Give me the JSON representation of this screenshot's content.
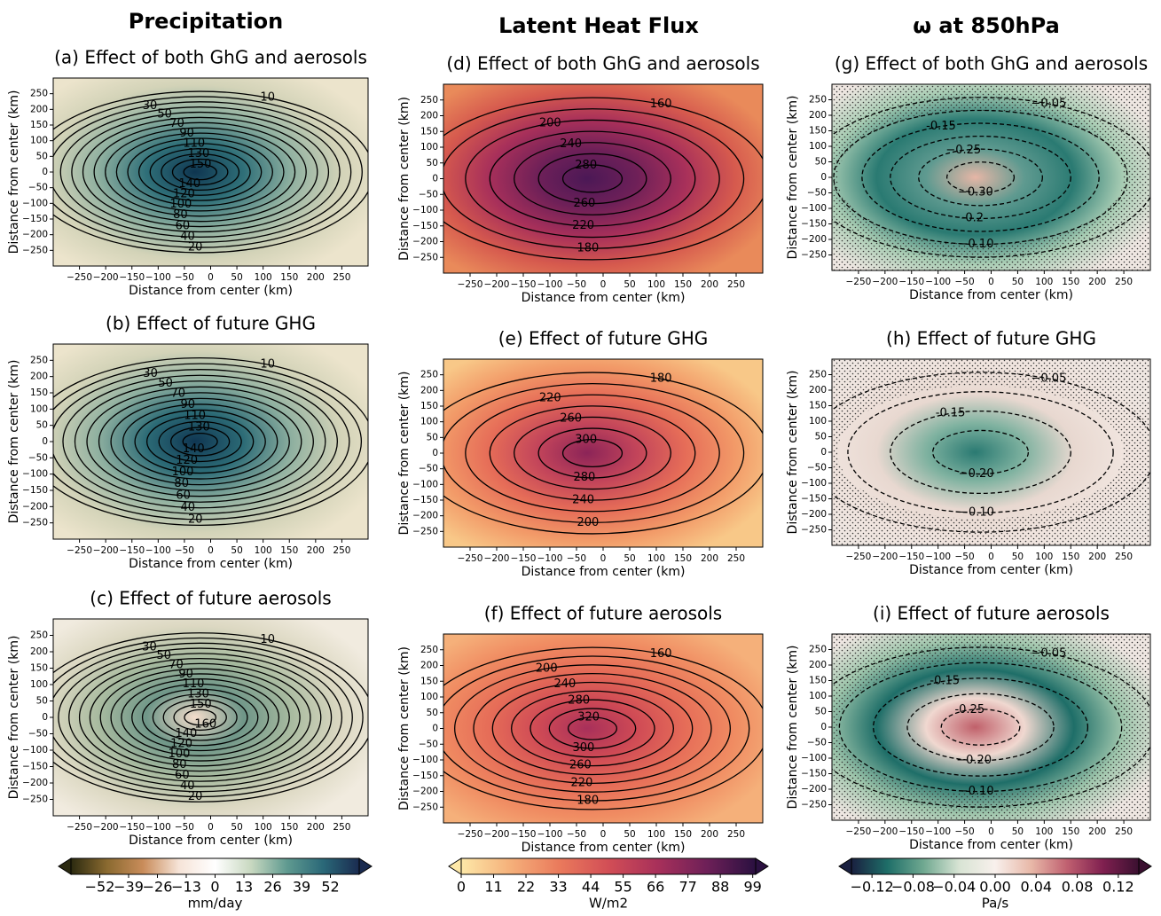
{
  "column_titles": [
    "Precipitation",
    "Latent Heat Flux",
    "ω at 850hPa"
  ],
  "chart_data": [
    {
      "type": "contour",
      "title": "(a) Effect of both GhG and aerosols",
      "xlabel": "Distance from center (km)",
      "ylabel": "Distance from center (km)",
      "xlim": [
        -300,
        300
      ],
      "ylim": [
        -300,
        300
      ],
      "xticks": [
        {
          "value": -250,
          "label": "−250"
        },
        {
          "value": -200,
          "label": "−200"
        },
        {
          "value": -150,
          "label": "−150"
        },
        {
          "value": -100,
          "label": "−100"
        },
        {
          "value": -50,
          "label": "−50"
        },
        0,
        50,
        100,
        150,
        200,
        250
      ],
      "yticks": [
        {
          "value": -250,
          "label": "−250"
        },
        {
          "value": -200,
          "label": "−200"
        },
        {
          "value": -150,
          "label": "−150"
        },
        {
          "value": -100,
          "label": "−100"
        },
        {
          "value": -50,
          "label": "−50"
        },
        0,
        50,
        100,
        150,
        200,
        250
      ],
      "levels": [
        10,
        20,
        30,
        40,
        50,
        60,
        70,
        80,
        90,
        100,
        110,
        120,
        130,
        140,
        150
      ],
      "colors": [
        "#0e3550",
        "#2f6f78",
        "#8fb0a0",
        "#d3d3b8",
        "#ece4cc"
      ]
    },
    {
      "type": "contour",
      "title": "(b) Effect of future GHG",
      "xlabel": "Distance from center (km)",
      "ylabel": "Distance from center (km)",
      "xlim": [
        -300,
        300
      ],
      "ylim": [
        -300,
        300
      ],
      "xticks": [
        {
          "value": -250,
          "label": "−250"
        },
        {
          "value": -200,
          "label": "−200"
        },
        {
          "value": -150,
          "label": "−150"
        },
        {
          "value": -100,
          "label": "−100"
        },
        {
          "value": -50,
          "label": "−50"
        },
        0,
        50,
        100,
        150,
        200,
        250
      ],
      "yticks": [
        {
          "value": -250,
          "label": "−250"
        },
        {
          "value": -200,
          "label": "−200"
        },
        {
          "value": -150,
          "label": "−150"
        },
        {
          "value": -100,
          "label": "−100"
        },
        {
          "value": -50,
          "label": "−50"
        },
        0,
        50,
        100,
        150,
        200,
        250
      ],
      "levels": [
        10,
        20,
        30,
        40,
        50,
        60,
        70,
        80,
        90,
        100,
        110,
        120,
        130,
        140
      ],
      "colors": [
        "#0f3652",
        "#2c6b76",
        "#8fb0a0",
        "#d3d3b8",
        "#ece4cc"
      ]
    },
    {
      "type": "contour",
      "title": "(c) Effect of future aerosols",
      "xlabel": "Distance from center (km)",
      "ylabel": "Distance from center (km)",
      "xlim": [
        -300,
        300
      ],
      "ylim": [
        -300,
        300
      ],
      "xticks": [
        {
          "value": -250,
          "label": "−250"
        },
        {
          "value": -200,
          "label": "−200"
        },
        {
          "value": -150,
          "label": "−150"
        },
        {
          "value": -100,
          "label": "−100"
        },
        {
          "value": -50,
          "label": "−50"
        },
        0,
        50,
        100,
        150,
        200,
        250
      ],
      "yticks": [
        {
          "value": -250,
          "label": "−250"
        },
        {
          "value": -200,
          "label": "−200"
        },
        {
          "value": -150,
          "label": "−150"
        },
        {
          "value": -100,
          "label": "−100"
        },
        {
          "value": -50,
          "label": "−50"
        },
        0,
        50,
        100,
        150,
        200,
        250
      ],
      "levels": [
        10,
        20,
        30,
        40,
        50,
        60,
        70,
        80,
        90,
        100,
        110,
        120,
        130,
        140,
        150,
        160
      ],
      "colors": [
        "#f3dccb",
        "#6f9688",
        "#a9bba0",
        "#dcd8c2",
        "#f1ebdf"
      ]
    },
    {
      "type": "contour",
      "title": "(d) Effect of both GhG and aerosols",
      "xlabel": "Distance from center (km)",
      "ylabel": "Distance from center (km)",
      "xlim": [
        -300,
        300
      ],
      "ylim": [
        -300,
        300
      ],
      "xticks": [
        {
          "value": -250,
          "label": "−250"
        },
        {
          "value": -200,
          "label": "−200"
        },
        {
          "value": -150,
          "label": "−150"
        },
        {
          "value": -100,
          "label": "−100"
        },
        {
          "value": -50,
          "label": "−50"
        },
        0,
        50,
        100,
        150,
        200,
        250
      ],
      "yticks": [
        {
          "value": -250,
          "label": "−250"
        },
        {
          "value": -200,
          "label": "−200"
        },
        {
          "value": -150,
          "label": "−150"
        },
        {
          "value": -100,
          "label": "−100"
        },
        {
          "value": -50,
          "label": "−50"
        },
        0,
        50,
        100,
        150,
        200,
        250
      ],
      "levels": [
        160,
        180,
        200,
        220,
        240,
        260,
        280
      ],
      "colors": [
        "#4b1856",
        "#6e2058",
        "#a8305a",
        "#d65a4e",
        "#e98a5a"
      ]
    },
    {
      "type": "contour",
      "title": "(e) Effect of future GHG",
      "xlabel": "Distance from center (km)",
      "ylabel": "Distance from center (km)",
      "xlim": [
        -300,
        300
      ],
      "ylim": [
        -300,
        300
      ],
      "xticks": [
        {
          "value": -250,
          "label": "−250"
        },
        {
          "value": -200,
          "label": "−200"
        },
        {
          "value": -150,
          "label": "−150"
        },
        {
          "value": -100,
          "label": "−100"
        },
        {
          "value": -50,
          "label": "−50"
        },
        0,
        50,
        100,
        150,
        200,
        250
      ],
      "yticks": [
        {
          "value": -250,
          "label": "−250"
        },
        {
          "value": -200,
          "label": "−200"
        },
        {
          "value": -150,
          "label": "−150"
        },
        {
          "value": -100,
          "label": "−100"
        },
        {
          "value": -50,
          "label": "−50"
        },
        0,
        50,
        100,
        150,
        200,
        250
      ],
      "levels": [
        180,
        200,
        220,
        240,
        260,
        280,
        300
      ],
      "colors": [
        "#8c2458",
        "#c2445a",
        "#e66d58",
        "#f29a68",
        "#f8c888"
      ]
    },
    {
      "type": "contour",
      "title": "(f) Effect of future aerosols",
      "xlabel": "Distance from center (km)",
      "ylabel": "Distance from center (km)",
      "xlim": [
        -300,
        300
      ],
      "ylim": [
        -300,
        300
      ],
      "xticks": [
        {
          "value": -250,
          "label": "−250"
        },
        {
          "value": -200,
          "label": "−200"
        },
        {
          "value": -150,
          "label": "−150"
        },
        {
          "value": -100,
          "label": "−100"
        },
        {
          "value": -50,
          "label": "−50"
        },
        0,
        50,
        100,
        150,
        200,
        250
      ],
      "yticks": [
        {
          "value": -250,
          "label": "−250"
        },
        {
          "value": -200,
          "label": "−200"
        },
        {
          "value": -150,
          "label": "−150"
        },
        {
          "value": -100,
          "label": "−100"
        },
        {
          "value": -50,
          "label": "−50"
        },
        0,
        50,
        100,
        150,
        200,
        250
      ],
      "levels": [
        160,
        180,
        200,
        220,
        240,
        260,
        280,
        300,
        320
      ],
      "colors": [
        "#a8305a",
        "#cf4a55",
        "#e66d58",
        "#f08c62",
        "#f5b07a"
      ]
    },
    {
      "type": "contour",
      "title": "(g) Effect of both GhG and aerosols",
      "xlabel": "Distance from center (km)",
      "ylabel": "Distance from center (km)",
      "xlim": [
        -300,
        300
      ],
      "ylim": [
        -300,
        300
      ],
      "xticks": [
        {
          "value": -250,
          "label": "−250"
        },
        {
          "value": -200,
          "label": "−200"
        },
        {
          "value": -150,
          "label": "−150"
        },
        {
          "value": -100,
          "label": "−100"
        },
        {
          "value": -50,
          "label": "−50"
        },
        0,
        50,
        100,
        150,
        200,
        250
      ],
      "yticks": [
        {
          "value": -250,
          "label": "−250"
        },
        {
          "value": -200,
          "label": "−200"
        },
        {
          "value": -150,
          "label": "−150"
        },
        {
          "value": -100,
          "label": "−100"
        },
        {
          "value": -50,
          "label": "−50"
        },
        0,
        50,
        100,
        150,
        200,
        250
      ],
      "levels": [
        {
          "value": -0.05,
          "label": "−0.05"
        },
        {
          "value": -0.1,
          "label": "−0.10"
        },
        -0.15,
        -0.2,
        {
          "value": -0.25,
          "label": "−0.25"
        },
        {
          "value": -0.3,
          "label": "−0.30"
        }
      ],
      "colors": [
        "#e6b6a6",
        "#5f9a90",
        "#2a7a72",
        "#a9cdb4",
        "#efe7e2"
      ],
      "stippling": true
    },
    {
      "type": "contour",
      "title": "(h) Effect of future GHG",
      "xlabel": "Distance from center (km)",
      "ylabel": "Distance from center (km)",
      "xlim": [
        -300,
        300
      ],
      "ylim": [
        -300,
        300
      ],
      "xticks": [
        {
          "value": -250,
          "label": "−250"
        },
        {
          "value": -200,
          "label": "−200"
        },
        {
          "value": -150,
          "label": "−150"
        },
        {
          "value": -100,
          "label": "−100"
        },
        {
          "value": -50,
          "label": "−50"
        },
        0,
        50,
        100,
        150,
        200,
        250
      ],
      "yticks": [
        {
          "value": -250,
          "label": "−250"
        },
        {
          "value": -200,
          "label": "−200"
        },
        {
          "value": -150,
          "label": "−150"
        },
        {
          "value": -100,
          "label": "−100"
        },
        {
          "value": -50,
          "label": "−50"
        },
        0,
        50,
        100,
        150,
        200,
        250
      ],
      "levels": [
        {
          "value": -0.05,
          "label": "−0.05"
        },
        {
          "value": -0.1,
          "label": "−0.10"
        },
        -0.15,
        {
          "value": -0.2,
          "label": "−0.20"
        }
      ],
      "colors": [
        "#2a7a72",
        "#7fb2a0",
        "#e8d8d0",
        "#f0e4de",
        "#efe7e2"
      ],
      "stippling": true
    },
    {
      "type": "contour",
      "title": "(i) Effect of future aerosols",
      "xlabel": "Distance from center (km)",
      "ylabel": "Distance from center (km)",
      "xlim": [
        -300,
        300
      ],
      "ylim": [
        -300,
        300
      ],
      "xticks": [
        {
          "value": -250,
          "label": "−250"
        },
        {
          "value": -200,
          "label": "−200"
        },
        {
          "value": -150,
          "label": "−150"
        },
        {
          "value": -100,
          "label": "−100"
        },
        {
          "value": -50,
          "label": "−50"
        },
        0,
        50,
        100,
        150,
        200,
        250
      ],
      "yticks": [
        {
          "value": -250,
          "label": "−250"
        },
        {
          "value": -200,
          "label": "−200"
        },
        {
          "value": -150,
          "label": "−150"
        },
        {
          "value": -100,
          "label": "−100"
        },
        {
          "value": -50,
          "label": "−50"
        },
        0,
        50,
        100,
        150,
        200,
        250
      ],
      "levels": [
        {
          "value": -0.05,
          "label": "−0.05"
        },
        {
          "value": -0.1,
          "label": "−0.10"
        },
        -0.15,
        {
          "value": -0.2,
          "label": "−0.20"
        },
        -0.25
      ],
      "colors": [
        "#c0606a",
        "#f0d8d0",
        "#1e6e68",
        "#9fc6ac",
        "#efe7e2"
      ],
      "stippling": true
    }
  ],
  "colorbars": [
    {
      "label": "mm/day",
      "lim": [
        -65,
        65
      ],
      "ticks": [
        {
          "value": -52,
          "label": "−52"
        },
        {
          "value": -39,
          "label": "−39"
        },
        {
          "value": -26,
          "label": "−26"
        },
        {
          "value": -13,
          "label": "−13"
        },
        0,
        13,
        26,
        39,
        52
      ],
      "colors": [
        "#2b2a10",
        "#8a6a30",
        "#c98c5a",
        "#f6e4d8",
        "#ffffff",
        "#c8d8c0",
        "#5f9a90",
        "#2a6878",
        "#1a2b50"
      ]
    },
    {
      "label": "W/m2",
      "lim": [
        0,
        100
      ],
      "ticks": [
        0,
        11,
        22,
        33,
        44,
        55,
        66,
        77,
        88,
        99
      ],
      "colors": [
        "#fde8a8",
        "#f5b07a",
        "#ea7a5c",
        "#d24e56",
        "#a8305a",
        "#6e2058",
        "#2a1040"
      ]
    },
    {
      "label": "Pa/s",
      "lim": [
        -0.14,
        0.14
      ],
      "ticks": [
        {
          "value": -0.12,
          "label": "−0.12"
        },
        {
          "value": -0.08,
          "label": "−0.08"
        },
        {
          "value": -0.04,
          "label": "−0.04"
        },
        {
          "value": 0,
          "label": "0.00"
        },
        0.04,
        0.08,
        0.12
      ],
      "colors": [
        "#1a2040",
        "#1e6e68",
        "#6fa890",
        "#d8e4d4",
        "#f8f0ec",
        "#e8b8a8",
        "#c06070",
        "#802050",
        "#3a1030"
      ]
    }
  ]
}
